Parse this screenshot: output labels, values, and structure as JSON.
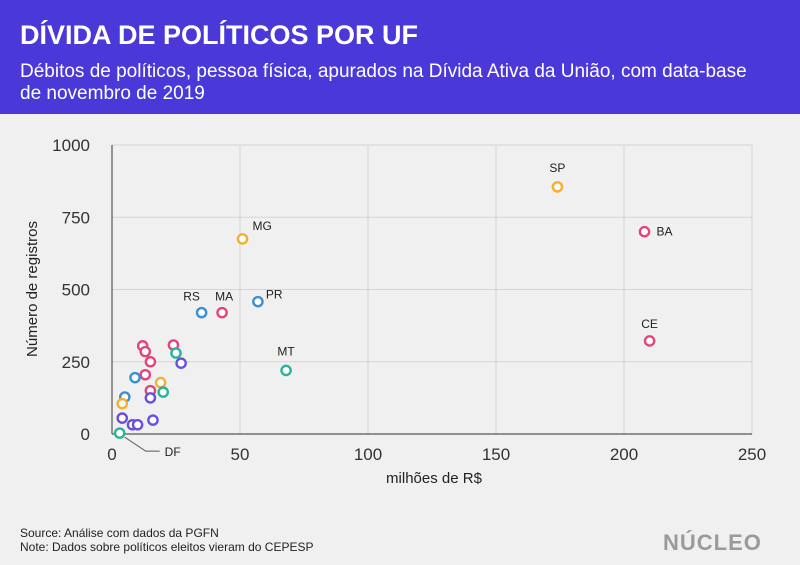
{
  "header": {
    "title": "DÍVIDA DE POLÍTICOS POR UF",
    "subtitle": "Débitos de políticos, pessoa física, apurados na Dívida Ativa da União, com data-base de novembro de 2019"
  },
  "footer": {
    "source": "Source: Análise com dados da PGFN",
    "note": "Note: Dados sobre políticos eleitos vieram do CEPESP"
  },
  "logo": "NÚCLEO",
  "colors": {
    "pink": "#e0457b",
    "yellow": "#f2b02e",
    "blue": "#3a8fd6",
    "teal": "#2ab39a",
    "purple": "#6a4fd8"
  },
  "chart_data": {
    "type": "scatter",
    "title": "DÍVIDA DE POLÍTICOS POR UF",
    "xlabel": "milhões de R$",
    "ylabel": "Número de registros",
    "xlim": [
      0,
      250
    ],
    "ylim": [
      0,
      1000
    ],
    "xticks": [
      0,
      50,
      100,
      150,
      200,
      250
    ],
    "yticks": [
      0,
      250,
      500,
      750,
      1000
    ],
    "grid": true,
    "points": [
      {
        "x": 174,
        "y": 855,
        "label": "SP",
        "color": "yellow"
      },
      {
        "x": 208,
        "y": 700,
        "label": "BA",
        "color": "pink"
      },
      {
        "x": 51,
        "y": 675,
        "label": "MG",
        "color": "yellow"
      },
      {
        "x": 57,
        "y": 458,
        "label": "PR",
        "color": "blue"
      },
      {
        "x": 35,
        "y": 420,
        "label": "RS",
        "color": "blue"
      },
      {
        "x": 43,
        "y": 420,
        "label": "MA",
        "color": "pink"
      },
      {
        "x": 210,
        "y": 322,
        "label": "CE",
        "color": "pink"
      },
      {
        "x": 68,
        "y": 220,
        "label": "MT",
        "color": "teal"
      },
      {
        "x": 3,
        "y": 3,
        "label": "DF",
        "color": "teal"
      },
      {
        "x": 12,
        "y": 305,
        "label": "",
        "color": "pink"
      },
      {
        "x": 13,
        "y": 285,
        "label": "",
        "color": "pink"
      },
      {
        "x": 15,
        "y": 250,
        "label": "",
        "color": "pink"
      },
      {
        "x": 24,
        "y": 308,
        "label": "",
        "color": "pink"
      },
      {
        "x": 25,
        "y": 280,
        "label": "",
        "color": "teal"
      },
      {
        "x": 27,
        "y": 245,
        "label": "",
        "color": "purple"
      },
      {
        "x": 13,
        "y": 205,
        "label": "",
        "color": "pink"
      },
      {
        "x": 9,
        "y": 195,
        "label": "",
        "color": "blue"
      },
      {
        "x": 19,
        "y": 178,
        "label": "",
        "color": "yellow"
      },
      {
        "x": 20,
        "y": 145,
        "label": "",
        "color": "teal"
      },
      {
        "x": 15,
        "y": 150,
        "label": "",
        "color": "pink"
      },
      {
        "x": 15,
        "y": 125,
        "label": "",
        "color": "purple"
      },
      {
        "x": 5,
        "y": 128,
        "label": "",
        "color": "blue"
      },
      {
        "x": 4,
        "y": 105,
        "label": "",
        "color": "yellow"
      },
      {
        "x": 4,
        "y": 55,
        "label": "",
        "color": "purple"
      },
      {
        "x": 16,
        "y": 48,
        "label": "",
        "color": "purple"
      },
      {
        "x": 8,
        "y": 32,
        "label": "",
        "color": "purple"
      },
      {
        "x": 10,
        "y": 32,
        "label": "",
        "color": "purple"
      }
    ]
  }
}
